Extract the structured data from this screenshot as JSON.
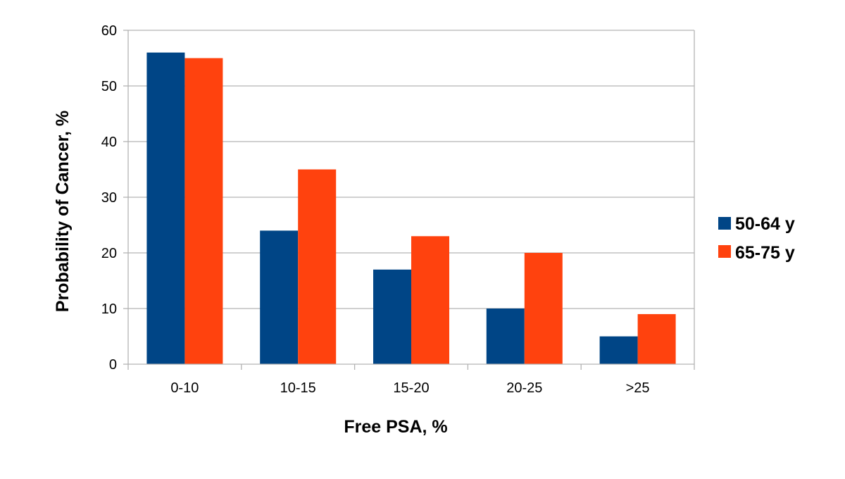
{
  "chart_data": {
    "type": "bar",
    "title": "",
    "xlabel": "Free PSA, %",
    "ylabel": "Probability of Cancer, %",
    "categories": [
      "0-10",
      "10-15",
      "15-20",
      "20-25",
      ">25"
    ],
    "ylim": [
      0,
      60
    ],
    "yticks": [
      "0",
      "10",
      "20",
      "30",
      "40",
      "50",
      "60"
    ],
    "grid": true,
    "legend_position": "right",
    "series": [
      {
        "name": "50-64 y",
        "color": "#004586",
        "values": [
          56,
          24,
          17,
          10,
          5
        ]
      },
      {
        "name": "65-75 y",
        "color": "#ff420e",
        "values": [
          55,
          35,
          23,
          20,
          9
        ]
      }
    ]
  }
}
